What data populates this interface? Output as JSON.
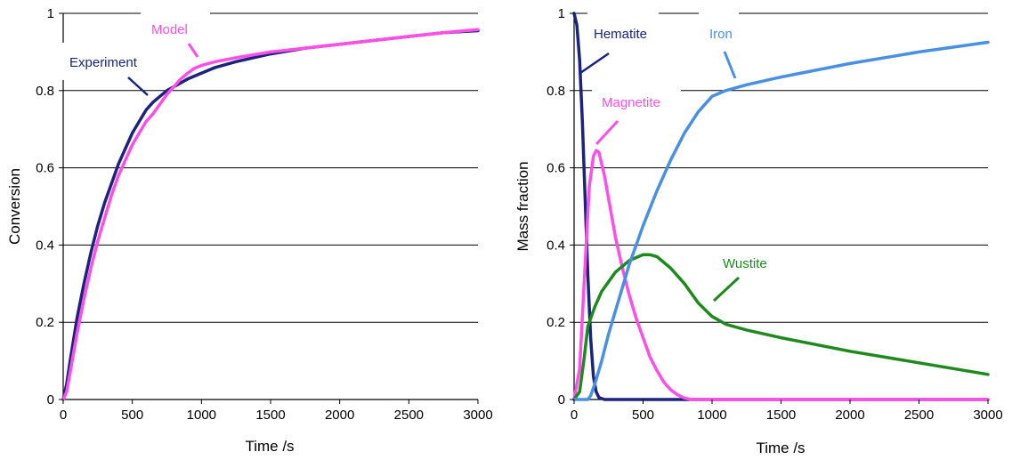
{
  "chart_data": [
    {
      "type": "line",
      "title": "",
      "xlabel": "Time /s",
      "ylabel": "Conversion",
      "xlim": [
        0,
        3000
      ],
      "ylim": [
        0,
        1
      ],
      "xticks": [
        "0",
        "500",
        "1000",
        "1500",
        "2000",
        "2500",
        "3000"
      ],
      "yticks": [
        "0",
        "0.2",
        "0.4",
        "0.6",
        "0.8",
        "1"
      ],
      "grid": "horizontal",
      "series": [
        {
          "name": "Experiment",
          "color": "#1a237e",
          "points": [
            [
              0,
              0
            ],
            [
              25,
              0.04
            ],
            [
              50,
              0.1
            ],
            [
              100,
              0.21
            ],
            [
              150,
              0.3
            ],
            [
              200,
              0.38
            ],
            [
              250,
              0.45
            ],
            [
              300,
              0.51
            ],
            [
              350,
              0.56
            ],
            [
              400,
              0.61
            ],
            [
              450,
              0.65
            ],
            [
              500,
              0.69
            ],
            [
              550,
              0.72
            ],
            [
              600,
              0.75
            ],
            [
              650,
              0.77
            ],
            [
              700,
              0.785
            ],
            [
              750,
              0.8
            ],
            [
              800,
              0.81
            ],
            [
              900,
              0.83
            ],
            [
              1000,
              0.845
            ],
            [
              1100,
              0.86
            ],
            [
              1250,
              0.875
            ],
            [
              1500,
              0.895
            ],
            [
              1750,
              0.91
            ],
            [
              2000,
              0.92
            ],
            [
              2250,
              0.93
            ],
            [
              2500,
              0.94
            ],
            [
              2750,
              0.95
            ],
            [
              3000,
              0.955
            ]
          ]
        },
        {
          "name": "Model",
          "color": "#ff4fe8",
          "points": [
            [
              0,
              0
            ],
            [
              25,
              0.02
            ],
            [
              50,
              0.07
            ],
            [
              100,
              0.17
            ],
            [
              150,
              0.26
            ],
            [
              200,
              0.34
            ],
            [
              250,
              0.41
            ],
            [
              300,
              0.47
            ],
            [
              350,
              0.53
            ],
            [
              400,
              0.58
            ],
            [
              450,
              0.62
            ],
            [
              500,
              0.66
            ],
            [
              550,
              0.69
            ],
            [
              600,
              0.72
            ],
            [
              650,
              0.74
            ],
            [
              700,
              0.765
            ],
            [
              750,
              0.79
            ],
            [
              800,
              0.81
            ],
            [
              850,
              0.83
            ],
            [
              900,
              0.845
            ],
            [
              950,
              0.858
            ],
            [
              1000,
              0.865
            ],
            [
              1100,
              0.875
            ],
            [
              1250,
              0.885
            ],
            [
              1500,
              0.9
            ],
            [
              1750,
              0.91
            ],
            [
              2000,
              0.92
            ],
            [
              2250,
              0.93
            ],
            [
              2500,
              0.94
            ],
            [
              2750,
              0.95
            ],
            [
              3000,
              0.958
            ]
          ]
        }
      ],
      "annotations": [
        {
          "text": "Model",
          "color": "#ff4fe8"
        },
        {
          "text": "Experiment",
          "color": "#1a237e"
        }
      ]
    },
    {
      "type": "line",
      "title": "",
      "xlabel": "Time /s",
      "ylabel": "Mass fraction",
      "xlim": [
        0,
        3000
      ],
      "ylim": [
        0,
        1
      ],
      "xticks": [
        "0",
        "500",
        "1000",
        "1500",
        "2000",
        "2500",
        "3000"
      ],
      "yticks": [
        "0",
        "0.2",
        "0.4",
        "0.6",
        "0.8",
        "1"
      ],
      "grid": "horizontal",
      "series": [
        {
          "name": "Hematite",
          "color": "#1a237e",
          "points": [
            [
              0,
              1.0
            ],
            [
              20,
              0.97
            ],
            [
              40,
              0.88
            ],
            [
              60,
              0.72
            ],
            [
              80,
              0.52
            ],
            [
              100,
              0.32
            ],
            [
              120,
              0.16
            ],
            [
              140,
              0.06
            ],
            [
              160,
              0.02
            ],
            [
              180,
              0.005
            ],
            [
              220,
              0.0
            ],
            [
              3000,
              0.0
            ]
          ]
        },
        {
          "name": "Magnetite",
          "color": "#ff4fe8",
          "points": [
            [
              0,
              0
            ],
            [
              40,
              0.08
            ],
            [
              80,
              0.35
            ],
            [
              110,
              0.55
            ],
            [
              140,
              0.63
            ],
            [
              160,
              0.645
            ],
            [
              180,
              0.64
            ],
            [
              220,
              0.58
            ],
            [
              260,
              0.5
            ],
            [
              300,
              0.42
            ],
            [
              350,
              0.34
            ],
            [
              400,
              0.27
            ],
            [
              450,
              0.21
            ],
            [
              500,
              0.16
            ],
            [
              550,
              0.11
            ],
            [
              600,
              0.075
            ],
            [
              650,
              0.045
            ],
            [
              700,
              0.025
            ],
            [
              750,
              0.012
            ],
            [
              800,
              0.004
            ],
            [
              850,
              0.0
            ],
            [
              3000,
              0.0
            ]
          ]
        },
        {
          "name": "Wustite",
          "color": "#1e8a1e",
          "points": [
            [
              0,
              0
            ],
            [
              40,
              0.02
            ],
            [
              70,
              0.1
            ],
            [
              100,
              0.19
            ],
            [
              150,
              0.24
            ],
            [
              200,
              0.28
            ],
            [
              300,
              0.33
            ],
            [
              400,
              0.36
            ],
            [
              500,
              0.375
            ],
            [
              550,
              0.375
            ],
            [
              600,
              0.37
            ],
            [
              700,
              0.34
            ],
            [
              800,
              0.3
            ],
            [
              900,
              0.25
            ],
            [
              1000,
              0.215
            ],
            [
              1100,
              0.195
            ],
            [
              1250,
              0.18
            ],
            [
              1500,
              0.16
            ],
            [
              2000,
              0.125
            ],
            [
              2500,
              0.095
            ],
            [
              3000,
              0.065
            ]
          ]
        },
        {
          "name": "Iron",
          "color": "#4a90e2",
          "points": [
            [
              0,
              0
            ],
            [
              100,
              0.0
            ],
            [
              120,
              0.01
            ],
            [
              150,
              0.04
            ],
            [
              200,
              0.1
            ],
            [
              250,
              0.17
            ],
            [
              300,
              0.23
            ],
            [
              350,
              0.29
            ],
            [
              400,
              0.35
            ],
            [
              450,
              0.4
            ],
            [
              500,
              0.45
            ],
            [
              600,
              0.54
            ],
            [
              700,
              0.62
            ],
            [
              800,
              0.69
            ],
            [
              900,
              0.745
            ],
            [
              1000,
              0.785
            ],
            [
              1100,
              0.8
            ],
            [
              1250,
              0.815
            ],
            [
              1500,
              0.835
            ],
            [
              2000,
              0.87
            ],
            [
              2500,
              0.9
            ],
            [
              3000,
              0.925
            ]
          ]
        }
      ],
      "annotations": [
        {
          "text": "Hematite",
          "color": "#1a237e"
        },
        {
          "text": "Iron",
          "color": "#4a90e2"
        },
        {
          "text": "Magnetite",
          "color": "#ff4fe8"
        },
        {
          "text": "Wustite",
          "color": "#1e8a1e"
        }
      ]
    }
  ]
}
